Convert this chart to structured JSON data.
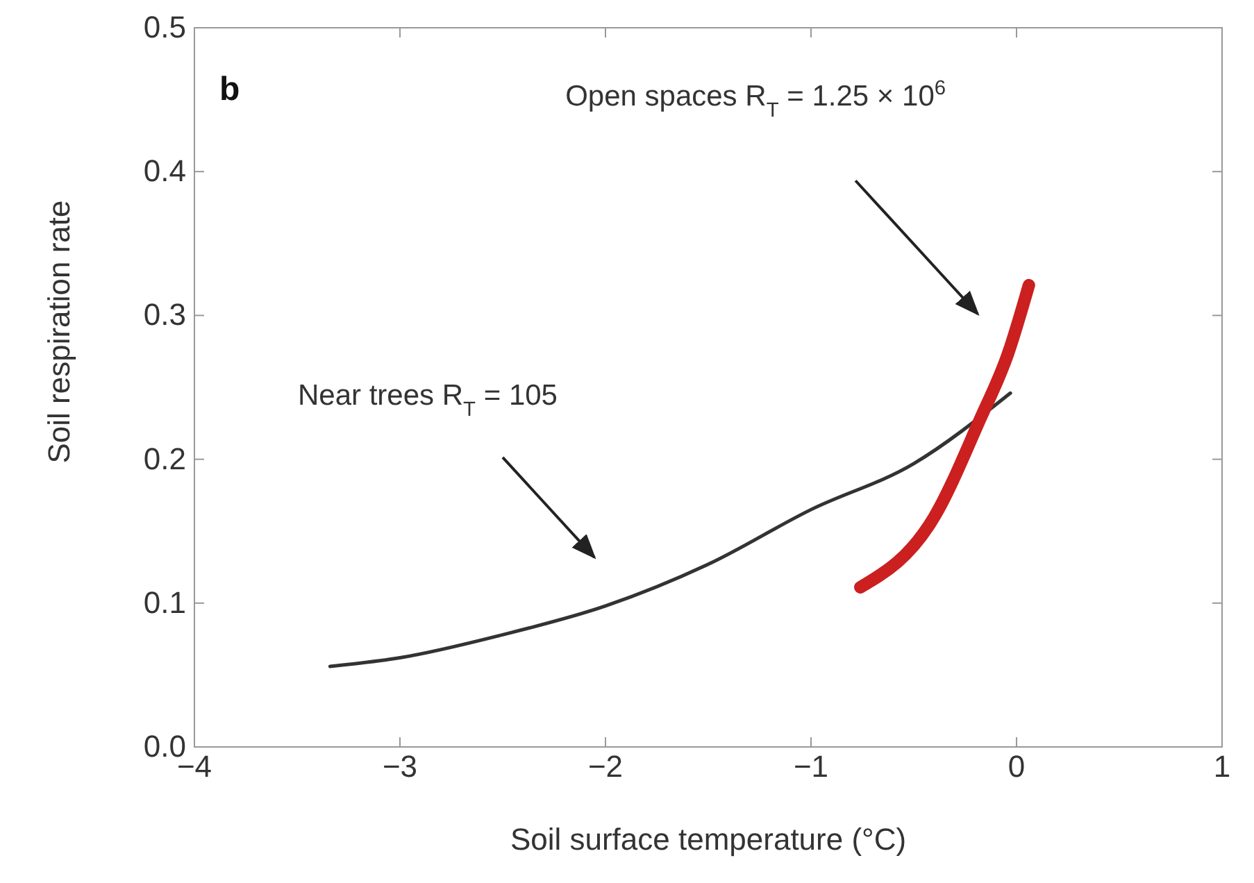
{
  "chart_data": {
    "type": "line",
    "xlabel": "Soil surface temperature (°C)",
    "ylabel": "Soil respiration rate",
    "xlim": [
      -4,
      1
    ],
    "xticks": [
      {
        "value": -4,
        "label": "−4"
      },
      {
        "value": -3,
        "label": "−3"
      },
      {
        "value": -2,
        "label": "−2"
      },
      {
        "value": -1,
        "label": "−1"
      },
      0,
      1
    ],
    "ylim": [
      0,
      0.5
    ],
    "yticks": [
      {
        "value": 0,
        "label": "0.0"
      },
      0.1,
      0.2,
      0.3,
      0.4,
      0.5
    ],
    "grid": false,
    "marker": "none",
    "line_style": "solid",
    "series": [
      {
        "color": "#333333",
        "x": [
          -3.34,
          -3,
          -2.5,
          -2,
          -1.5,
          -1,
          -0.5,
          -0.03
        ],
        "values": [
          0.056,
          0.062,
          0.078,
          0.098,
          0.127,
          0.165,
          0.197,
          0.246
        ]
      },
      {
        "color": "#cc1f1f",
        "x": [
          -0.76,
          -0.4,
          -0.18,
          -0.04,
          0.06
        ],
        "values": [
          0.111,
          0.16,
          0.227,
          0.274,
          0.321
        ]
      }
    ],
    "annotations": [
      "b",
      "Near trees R$_{T}$ = 105",
      "Open spaces R$_{T}$ = 1.25 × 10$^{6}$"
    ]
  }
}
